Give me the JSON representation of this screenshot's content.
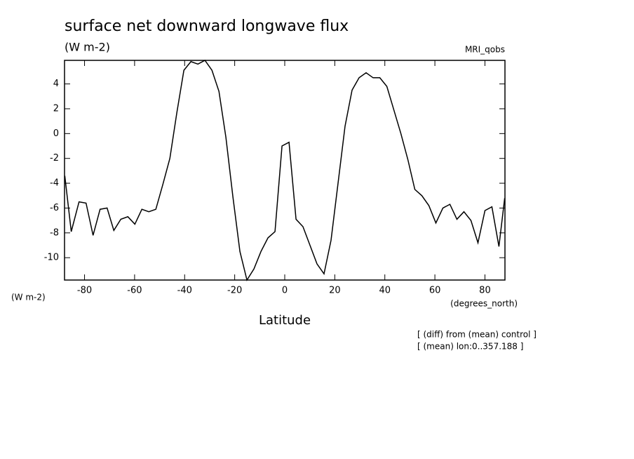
{
  "chart_data": {
    "type": "line",
    "title": "surface net downward longwave flux",
    "units_top": "(W m-2)",
    "model_label": "MRI_qobs",
    "y_axis_label": "(W m-2)",
    "x_units_label": "(degrees_north)",
    "x_axis_label": "Latitude",
    "annotations": [
      "[ (diff) from (mean) control ]",
      "[ (mean) lon:0..357.188 ]"
    ],
    "color": "#000000",
    "xlim": [
      -88,
      88
    ],
    "ylim": [
      -11.8,
      5.9
    ],
    "xticks": [
      -80,
      -60,
      -40,
      -20,
      0,
      20,
      40,
      60,
      80
    ],
    "yticks": [
      -10,
      -8,
      -6,
      -4,
      -2,
      0,
      2,
      4
    ],
    "x": [
      -87.9,
      -85.3,
      -82.2,
      -79.4,
      -76.6,
      -73.8,
      -71.0,
      -68.3,
      -65.5,
      -62.7,
      -59.9,
      -57.1,
      -54.3,
      -51.5,
      -48.7,
      -45.9,
      -43.1,
      -40.3,
      -37.5,
      -34.7,
      -31.9,
      -29.1,
      -26.3,
      -23.5,
      -20.7,
      -17.9,
      -15.1,
      -12.3,
      -9.5,
      -6.7,
      -3.9,
      -1.1,
      1.7,
      4.5,
      7.3,
      10.1,
      12.9,
      15.7,
      18.5,
      21.3,
      24.1,
      26.9,
      29.7,
      32.5,
      35.3,
      38.0,
      40.8,
      43.6,
      46.4,
      49.2,
      52.0,
      54.8,
      57.6,
      60.4,
      63.2,
      66.0,
      68.8,
      71.6,
      74.4,
      77.2,
      80.0,
      82.8,
      85.6,
      87.9
    ],
    "values": [
      -3.4,
      -7.9,
      -5.5,
      -5.6,
      -8.2,
      -6.1,
      -6.0,
      -7.8,
      -6.9,
      -6.7,
      -7.3,
      -6.1,
      -6.3,
      -6.1,
      -4.1,
      -2.0,
      1.7,
      5.1,
      5.8,
      5.6,
      5.9,
      5.1,
      3.4,
      -0.3,
      -5.1,
      -9.5,
      -11.8,
      -10.9,
      -9.5,
      -8.4,
      -7.9,
      -1.0,
      -0.7,
      -6.9,
      -7.5,
      -9.0,
      -10.5,
      -11.3,
      -8.6,
      -4.0,
      0.6,
      3.5,
      4.5,
      4.9,
      4.5,
      4.5,
      3.8,
      1.9,
      0.0,
      -2.1,
      -4.5,
      -5.0,
      -5.8,
      -7.2,
      -6.0,
      -5.7,
      -6.9,
      -6.3,
      -7.0,
      -8.8,
      -6.2,
      -5.9,
      -9.1,
      -5.2
    ]
  }
}
